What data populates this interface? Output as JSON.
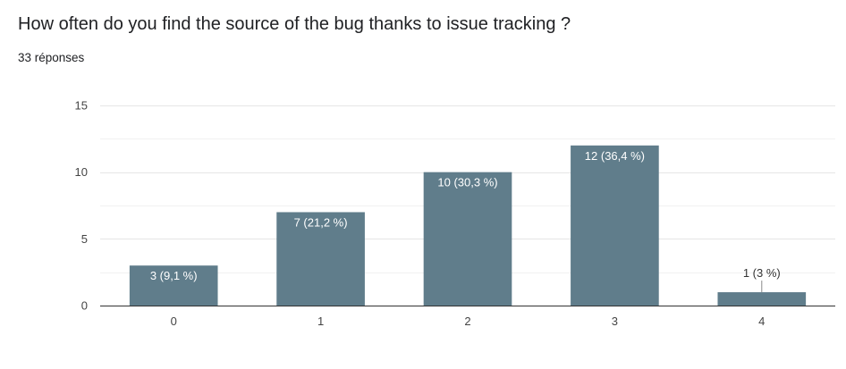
{
  "question": {
    "title": "How often do you find the source of the bug thanks to issue tracking ?",
    "responses": "33 réponses"
  },
  "colors": {
    "bar": "#607d8b",
    "grid": "#e8e8e8",
    "axis": "#333333",
    "label_inside": "#ffffff",
    "label_outside": "#333333"
  },
  "chart_data": {
    "type": "bar",
    "categories": [
      "0",
      "1",
      "2",
      "3",
      "4"
    ],
    "values": [
      3,
      7,
      10,
      12,
      1
    ],
    "data_labels": [
      "3 (9,1 %)",
      "7 (21,2 %)",
      "10 (30,3 %)",
      "12 (36,4 %)",
      "1 (3 %)"
    ],
    "title": "How often do you find the source of the bug thanks to issue tracking ?",
    "subtitle": "33 réponses",
    "xlabel": "",
    "ylabel": "",
    "ylim": [
      0,
      15
    ],
    "yticks": [
      0,
      5,
      10,
      15
    ],
    "grid": true,
    "legend": "none"
  }
}
